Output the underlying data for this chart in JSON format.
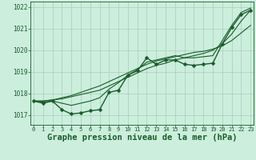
{
  "background_color": "#cceedd",
  "grid_color": "#aaccbb",
  "line_color": "#1a5c2a",
  "xlabel": "Graphe pression niveau de la mer (hPa)",
  "xlabel_fontsize": 7.5,
  "ylabel_ticks": [
    1017,
    1018,
    1019,
    1020,
    1021,
    1022
  ],
  "xticks": [
    0,
    1,
    2,
    3,
    4,
    5,
    6,
    7,
    8,
    9,
    10,
    11,
    12,
    13,
    14,
    15,
    16,
    17,
    18,
    19,
    20,
    21,
    22,
    23
  ],
  "xlim": [
    -0.3,
    23.3
  ],
  "ylim": [
    1016.55,
    1022.25
  ],
  "series": [
    {
      "x": [
        0,
        1,
        2,
        3,
        4,
        5,
        6,
        7,
        8,
        9,
        10,
        11,
        12,
        13,
        14,
        15,
        16,
        17,
        18,
        19,
        20,
        21,
        22,
        23
      ],
      "y": [
        1017.65,
        1017.55,
        1017.65,
        1017.25,
        1017.05,
        1017.1,
        1017.2,
        1017.25,
        1018.05,
        1018.15,
        1018.85,
        1019.05,
        1019.65,
        1019.35,
        1019.55,
        1019.55,
        1019.35,
        1019.3,
        1019.35,
        1019.4,
        1020.3,
        1021.05,
        1021.65,
        1021.85
      ],
      "marker": "D",
      "markersize": 2.5,
      "linewidth": 1.0
    },
    {
      "x": [
        0,
        1,
        2,
        3,
        4,
        5,
        6,
        7,
        8,
        9,
        10,
        11,
        12,
        13,
        14,
        15,
        16,
        17,
        18,
        19,
        20,
        21,
        22,
        23
      ],
      "y": [
        1017.65,
        1017.6,
        1017.65,
        1017.55,
        1017.45,
        1017.55,
        1017.65,
        1017.8,
        1018.2,
        1018.5,
        1018.85,
        1019.1,
        1019.45,
        1019.55,
        1019.65,
        1019.75,
        1019.65,
        1019.65,
        1019.7,
        1019.75,
        1020.45,
        1021.15,
        1021.75,
        1021.95
      ],
      "marker": null,
      "markersize": 0,
      "linewidth": 0.8
    },
    {
      "x": [
        0,
        1,
        2,
        3,
        4,
        5,
        6,
        7,
        8,
        9,
        10,
        11,
        12,
        13,
        14,
        15,
        16,
        17,
        18,
        19,
        20,
        21,
        22,
        23
      ],
      "y": [
        1017.65,
        1017.65,
        1017.7,
        1017.75,
        1017.85,
        1017.95,
        1018.05,
        1018.15,
        1018.35,
        1018.55,
        1018.75,
        1018.95,
        1019.15,
        1019.3,
        1019.4,
        1019.55,
        1019.65,
        1019.75,
        1019.85,
        1020.0,
        1020.3,
        1020.75,
        1021.35,
        1021.85
      ],
      "marker": null,
      "markersize": 0,
      "linewidth": 0.8
    },
    {
      "x": [
        0,
        1,
        2,
        3,
        4,
        5,
        6,
        7,
        8,
        9,
        10,
        11,
        12,
        13,
        14,
        15,
        16,
        17,
        18,
        19,
        20,
        21,
        22,
        23
      ],
      "y": [
        1017.65,
        1017.65,
        1017.7,
        1017.8,
        1017.9,
        1018.05,
        1018.2,
        1018.35,
        1018.55,
        1018.75,
        1018.95,
        1019.15,
        1019.35,
        1019.5,
        1019.6,
        1019.7,
        1019.8,
        1019.9,
        1019.95,
        1020.05,
        1020.2,
        1020.45,
        1020.8,
        1021.15
      ],
      "marker": null,
      "markersize": 0,
      "linewidth": 0.8
    }
  ]
}
